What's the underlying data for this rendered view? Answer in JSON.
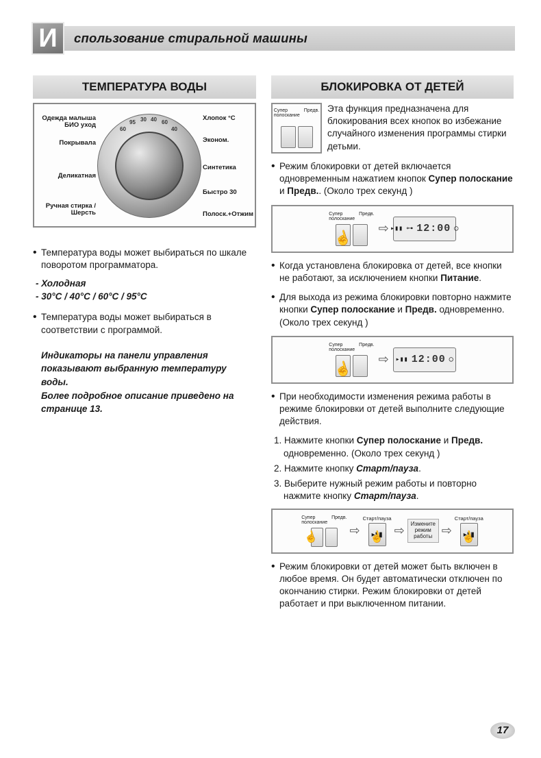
{
  "page": {
    "number": "17"
  },
  "title": {
    "cap": "И",
    "rest": "спользование стиральной машины"
  },
  "left": {
    "heading": "ТЕМПЕРАТУРА ВОДЫ",
    "dial": {
      "labels_left": [
        "Одежда малыша\nБИО уход",
        "Покрывала",
        "Деликатная",
        "Ручная стирка /\nШерсть"
      ],
      "labels_right": [
        "Хлопок °C",
        "Эконом.",
        "Синтетика",
        "Быстро 30",
        "Полоск.+Отжим"
      ],
      "ring_numbers": [
        "30",
        "40",
        "60",
        "95",
        "60",
        "40",
        "30",
        "60",
        "40",
        "30",
        "40",
        "30"
      ]
    },
    "bullets": [
      "Температура воды может выбираться по шкале поворотом программатора.",
      "Температура воды может выбираться в соответствии с программой."
    ],
    "temps": [
      "- Холодная",
      "- 30°C / 40°C / 60°C / 95°C"
    ],
    "note": "Индикаторы на панели управления показывают выбранную температуру воды.\nБолее подробное описание приведено на странице 13."
  },
  "right": {
    "heading": "БЛОКИРОВКА ОТ ДЕТЕЙ",
    "intro": "Эта функция предназначена для блокирования всех кнопок во избежание случайного изменения программы стирки детьми.",
    "btn_labels": {
      "left": "Супер\nполоскание",
      "right": "Предв."
    },
    "b1_pre": "Режим блокировки от детей включается одновременным нажатием кнопок ",
    "b1_bold1": "Супер полоскание",
    "b1_mid": " и ",
    "b1_bold2": "Предв.",
    "b1_post": ". (Около трех секунд )",
    "display_value": "12:00",
    "b2_pre": "Когда установлена блокировка от детей, все кнопки не работают, за исключением кнопки ",
    "b2_bold": "Питание",
    "b2_post": ".",
    "b3_pre": "Для выхода из режима блокировки повторно нажмите кнопки ",
    "b3_bold1": "Супер полоскание",
    "b3_mid": " и ",
    "b3_bold2": "Предв.",
    "b3_post": " одновременно. (Около трех секунд )",
    "b4": "При необходимости изменения режима работы в режиме блокировки от детей выполните следующие действия.",
    "steps": {
      "s1_pre": "1. Нажмите кнопки ",
      "s1_b1": "Супер полоскание",
      "s1_mid": " и ",
      "s1_b2": "Предв.",
      "s1_post": " одновременно. (Около трех секунд )",
      "s2_pre": "2. Нажмите кнопку ",
      "s2_b": "Старт/пауза",
      "s2_post": ".",
      "s3_pre": "3. Выберите нужный режим работы и повторно нажмите кнопку ",
      "s3_b": "Старт/пауза",
      "s3_post": "."
    },
    "flow": {
      "startpause": "Старт/пауза",
      "change": "Измените режим работы"
    },
    "last": "Режим блокировки от детей может быть включен в любое время. Он будет автоматически отключен по окончанию стирки. Режим блокировки от детей работает и при выключенном питании."
  },
  "colors": {
    "band_top": "#dcdcdc",
    "band_bot": "#c6c6c6",
    "border": "#8a8a8a",
    "text": "#1a1a1a"
  }
}
